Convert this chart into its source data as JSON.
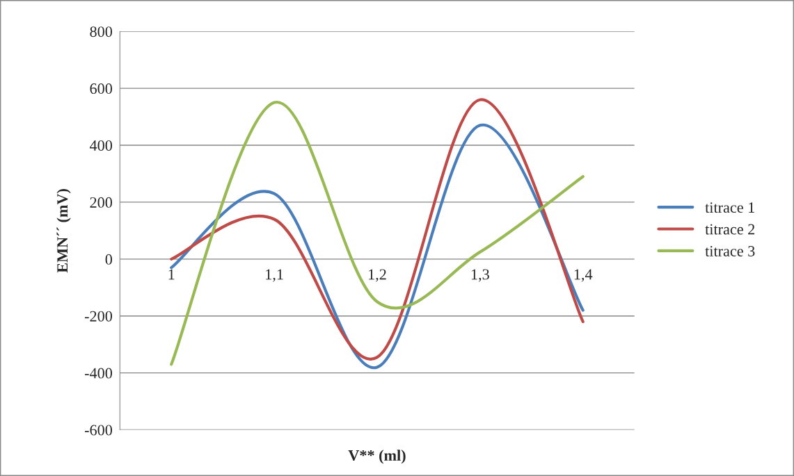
{
  "chart_data": {
    "type": "line",
    "xlabel": "V** (ml)",
    "ylabel": "EMN´´ (mV)",
    "categories": [
      "1",
      "1,1",
      "1,2",
      "1,3",
      "1,4"
    ],
    "series": [
      {
        "name": "titrace 1",
        "color": "#4a7ebb",
        "values": [
          -30,
          230,
          -380,
          470,
          -180
        ]
      },
      {
        "name": "titrace 2",
        "color": "#be4b48",
        "values": [
          0,
          140,
          -345,
          560,
          -220
        ]
      },
      {
        "name": "titrace 3",
        "color": "#98b954",
        "values": [
          -370,
          550,
          -150,
          25,
          290
        ]
      }
    ],
    "ylim": [
      -600,
      800
    ],
    "yticks": [
      -600,
      -400,
      -200,
      0,
      200,
      400,
      600,
      800
    ],
    "grid": "y",
    "legend": "right",
    "marker": "none",
    "line_style": "solid"
  }
}
